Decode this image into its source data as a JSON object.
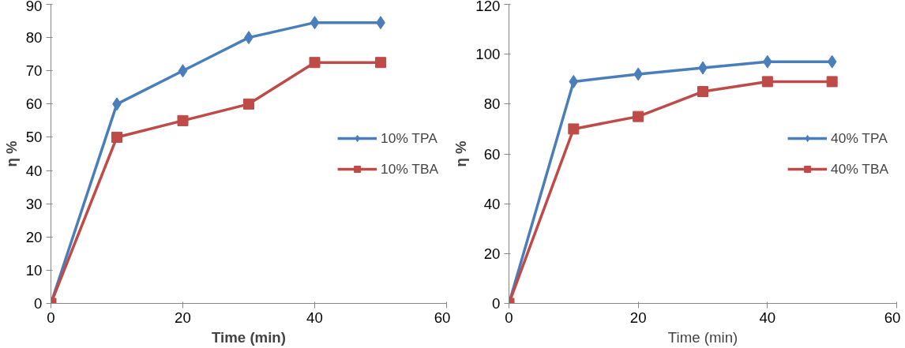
{
  "chart_data": [
    {
      "type": "line",
      "xlabel": "Time (min)",
      "ylabel": "η %",
      "x": [
        0,
        10,
        20,
        30,
        40,
        50
      ],
      "xlim": [
        0,
        60
      ],
      "xticks": [
        0,
        20,
        40,
        60
      ],
      "ylim": [
        0,
        90
      ],
      "yticks": [
        0,
        10,
        20,
        30,
        40,
        50,
        60,
        70,
        80,
        90
      ],
      "legend": "right",
      "grid": false,
      "series": [
        {
          "name": "10% TPA",
          "color": "#4a7ebb",
          "marker": "diamond",
          "values": [
            0,
            60,
            70,
            80,
            84.5,
            84.5
          ]
        },
        {
          "name": "10% TBA",
          "color": "#be4b48",
          "marker": "square",
          "values": [
            0,
            50,
            55,
            60,
            72.5,
            72.5
          ]
        }
      ]
    },
    {
      "type": "line",
      "xlabel": "Time (min)",
      "ylabel": "η %",
      "x": [
        0,
        10,
        20,
        30,
        40,
        50
      ],
      "xlim": [
        0,
        60
      ],
      "xticks": [
        0,
        20,
        40,
        60
      ],
      "ylim": [
        0,
        120
      ],
      "yticks": [
        0,
        20,
        40,
        60,
        80,
        100,
        120
      ],
      "legend": "right",
      "grid": false,
      "series": [
        {
          "name": "40% TPA",
          "color": "#4a7ebb",
          "marker": "diamond",
          "values": [
            0,
            89,
            92,
            94.5,
            97,
            97
          ]
        },
        {
          "name": "40% TBA",
          "color": "#be4b48",
          "marker": "square",
          "values": [
            0,
            70,
            75,
            85,
            89,
            89
          ]
        }
      ]
    }
  ]
}
